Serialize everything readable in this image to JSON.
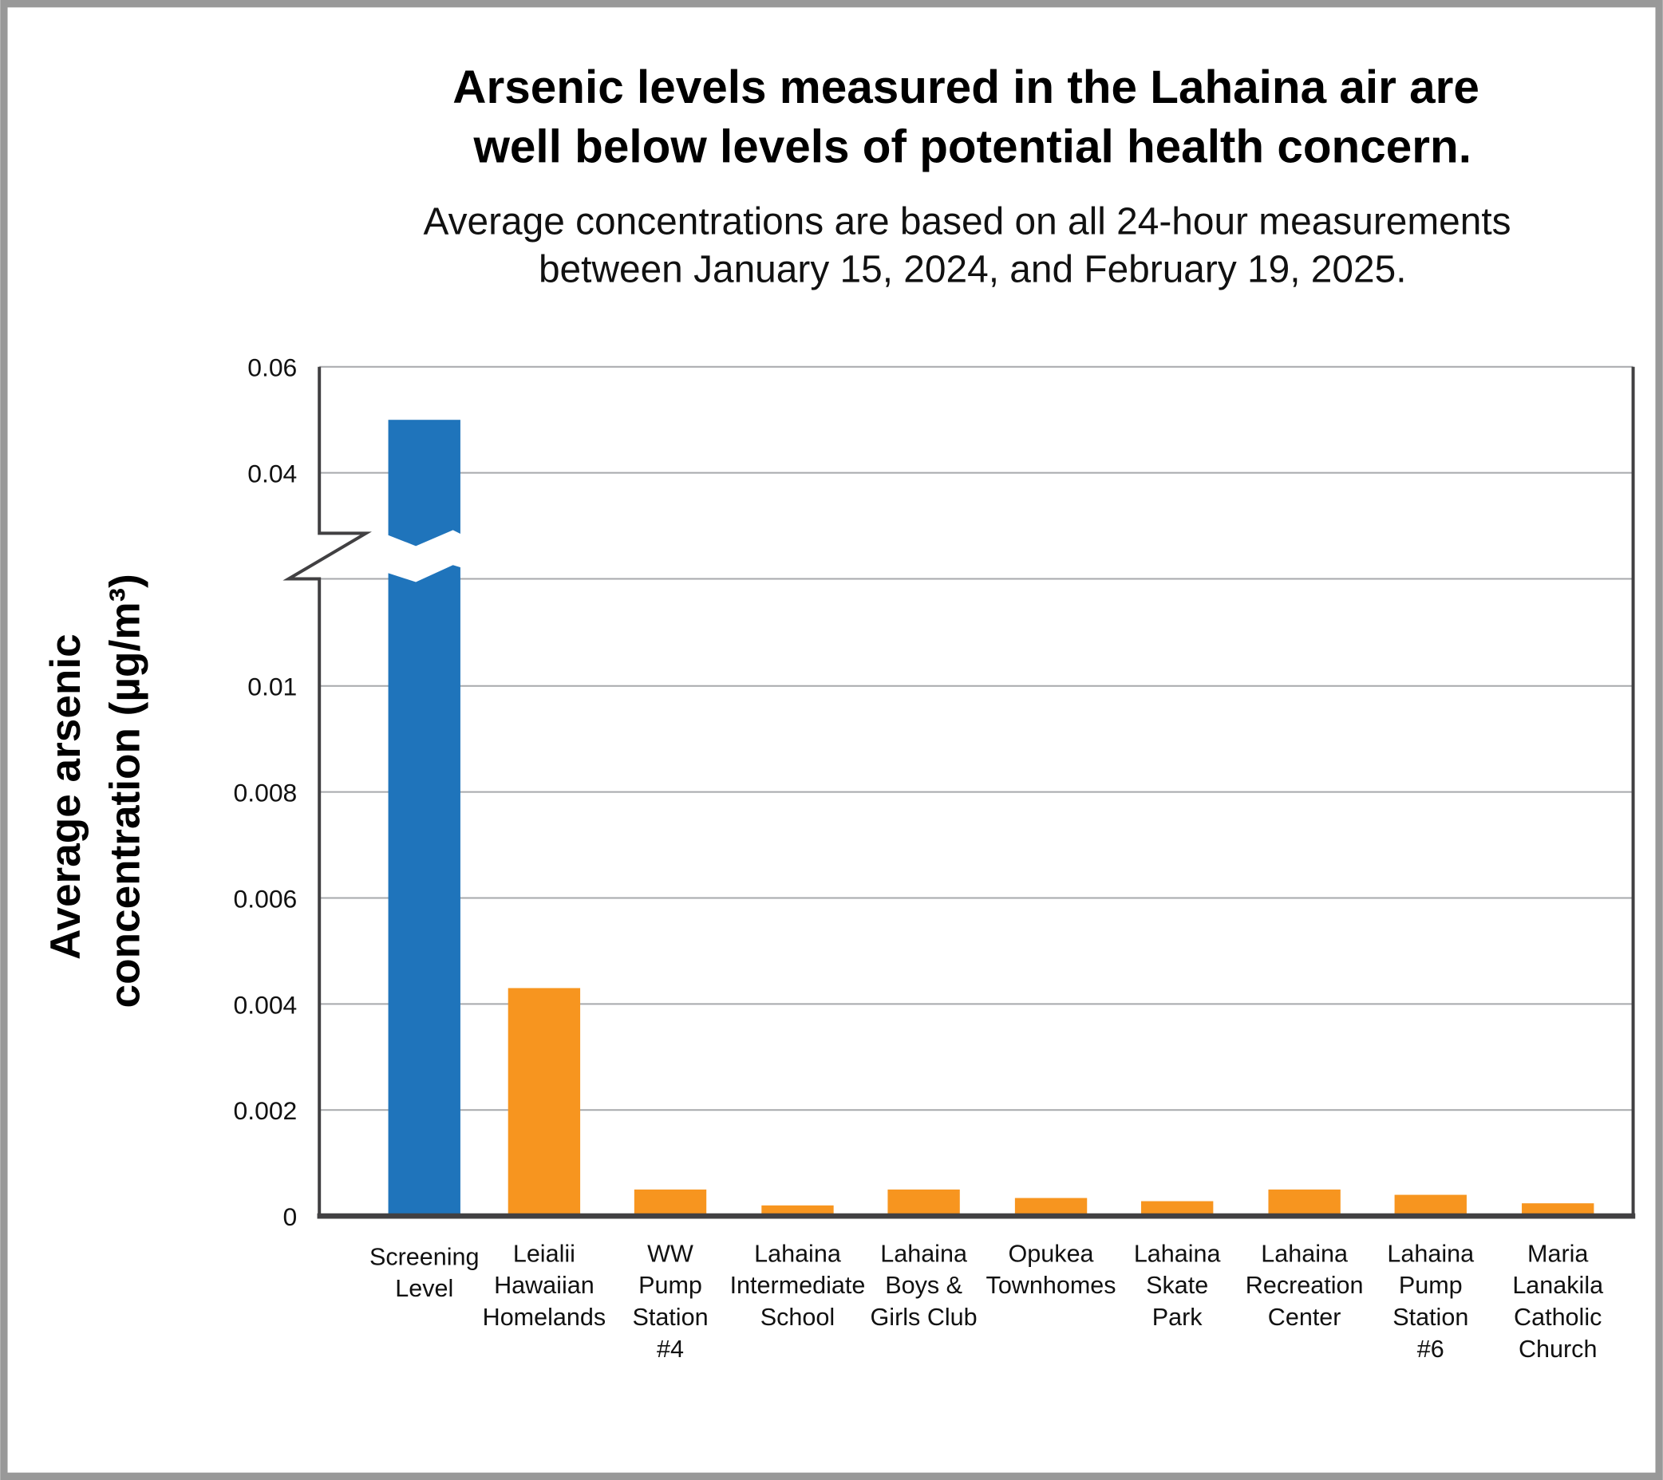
{
  "chart_data": {
    "type": "bar",
    "title": [
      "Arsenic levels measured in the Lahaina air are",
      "well below levels of potential health concern."
    ],
    "subtitle": [
      "Average concentrations are based on all 24-hour measurements",
      "between January 15, 2024, and February 19, 2025."
    ],
    "ylabel": [
      "Average arsenic",
      "concentration (µg/m³)"
    ],
    "xlabel": "",
    "y_axis": "broken",
    "ylim_lower": [
      0,
      0.01
    ],
    "ylim_upper": [
      0.04,
      0.06
    ],
    "y_ticks": [
      "0",
      "0.002",
      "0.004",
      "0.006",
      "0.008",
      "0.01",
      "0.04",
      "0.06"
    ],
    "grid": true,
    "categories": [
      [
        "Screening",
        "Level"
      ],
      [
        "Leialii",
        "Hawaiian",
        "Homelands"
      ],
      [
        "WW",
        "Pump",
        "Station",
        "#4"
      ],
      [
        "Lahaina",
        "Intermediate",
        "School"
      ],
      [
        "Lahaina",
        "Boys &",
        "Girls Club"
      ],
      [
        "Opukea",
        "Townhomes"
      ],
      [
        "Lahaina",
        "Skate",
        "Park"
      ],
      [
        "Lahaina",
        "Recreation",
        "Center"
      ],
      [
        "Lahaina",
        "Pump",
        "Station",
        "#6"
      ],
      [
        "Maria",
        "Lanakila",
        "Catholic",
        "Church"
      ]
    ],
    "values": [
      0.05,
      0.0043,
      0.0005,
      0.0002,
      0.0005,
      0.00034,
      0.00028,
      0.0005,
      0.0004,
      0.00024
    ],
    "colors": [
      "#1f74bb",
      "#f7951f",
      "#f7951f",
      "#f7951f",
      "#f7951f",
      "#f7951f",
      "#f7951f",
      "#f7951f",
      "#f7951f",
      "#f7951f"
    ],
    "frame_color": "#999999",
    "axis_color": "#414042"
  }
}
